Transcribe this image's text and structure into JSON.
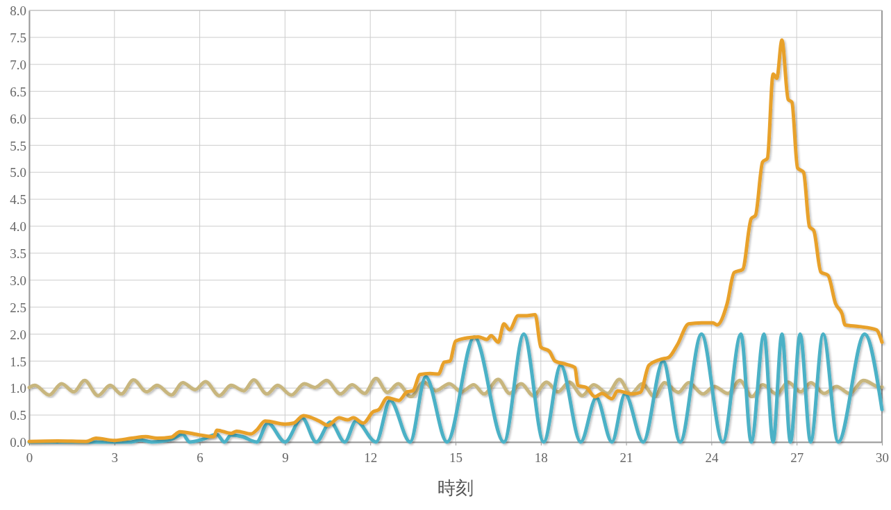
{
  "chart_data": {
    "type": "line",
    "xlabel": "時刻",
    "xlim": [
      0,
      30
    ],
    "xticks": [
      0,
      3,
      6,
      9,
      12,
      15,
      18,
      21,
      24,
      27,
      30
    ],
    "ylim": [
      0,
      8
    ],
    "yticks": [
      {
        "value": 0,
        "label": "0.0"
      },
      {
        "value": 0.5,
        "label": "0.5"
      },
      {
        "value": 1,
        "label": "1.0"
      },
      {
        "value": 1.5,
        "label": "1.5"
      },
      {
        "value": 2,
        "label": "2.0"
      },
      {
        "value": 2.5,
        "label": "2.5"
      },
      {
        "value": 3,
        "label": "3.0"
      },
      {
        "value": 3.5,
        "label": "3.5"
      },
      {
        "value": 4,
        "label": "4.0"
      },
      {
        "value": 4.5,
        "label": "4.5"
      },
      {
        "value": 5,
        "label": "5.0"
      },
      {
        "value": 5.5,
        "label": "5.5"
      },
      {
        "value": 6,
        "label": "6.0"
      },
      {
        "value": 6.5,
        "label": "6.5"
      },
      {
        "value": 7,
        "label": "7.0"
      },
      {
        "value": 7.5,
        "label": "7.5"
      },
      {
        "value": 8,
        "label": "8.0"
      }
    ],
    "grid": true,
    "marker": "none",
    "line_style": "solid",
    "series": [
      {
        "color": "#c8b67e",
        "x": [
          0,
          0.2,
          0.7,
          1.14,
          1.57,
          1.95,
          2.42,
          2.85,
          3.24,
          3.67,
          4.13,
          4.5,
          5.0,
          5.4,
          5.84,
          6.2,
          6.69,
          7.1,
          7.55,
          7.9,
          8.36,
          8.74,
          9.22,
          9.68,
          10.05,
          10.46,
          10.95,
          11.36,
          11.8,
          12.2,
          12.6,
          12.98,
          13.43,
          13.88,
          14.3,
          14.78,
          15.2,
          15.64,
          16.0,
          16.5,
          16.9,
          17.3,
          17.74,
          18.2,
          18.6,
          19.0,
          19.45,
          19.86,
          20.35,
          20.76,
          21.16,
          21.57,
          22.0,
          22.35,
          22.84,
          23.2,
          23.7,
          24.1,
          24.58,
          25.0,
          25.43,
          25.8,
          26.3,
          26.7,
          27.14,
          27.5,
          27.97,
          28.4,
          28.86,
          29.35,
          29.95,
          30
        ],
        "values": [
          1.01,
          1.05,
          0.87,
          1.08,
          0.93,
          1.14,
          0.86,
          1.05,
          0.89,
          1.15,
          0.93,
          1.05,
          0.87,
          1.1,
          0.97,
          1.12,
          0.86,
          1.05,
          0.95,
          1.15,
          0.89,
          1.05,
          0.87,
          1.08,
          1.01,
          1.14,
          0.89,
          1.06,
          0.9,
          1.18,
          0.92,
          1.08,
          0.84,
          1.11,
          0.95,
          1.08,
          0.93,
          1.06,
          0.89,
          1.16,
          0.9,
          1.08,
          0.86,
          1.11,
          0.93,
          1.11,
          0.86,
          1.06,
          0.9,
          1.16,
          0.89,
          1.08,
          0.84,
          1.1,
          0.92,
          1.1,
          0.89,
          1.03,
          0.9,
          1.14,
          0.84,
          1.06,
          0.89,
          1.11,
          0.93,
          1.1,
          0.9,
          1.03,
          0.9,
          1.14,
          1.01,
          1.02
        ]
      },
      {
        "color": "#4bb1c6",
        "x": [
          0,
          3.6,
          3.9,
          4.3,
          5.0,
          5.4,
          5.65,
          6.1,
          6.6,
          6.87,
          7.1,
          7.5,
          8.0,
          8.4,
          9.0,
          9.6,
          10.1,
          10.6,
          11.1,
          11.5,
          12.2,
          12.7,
          13.4,
          13.95,
          14.7,
          15.66,
          16.7,
          17.4,
          18.1,
          18.7,
          19.4,
          19.95,
          20.5,
          20.96,
          21.6,
          22.3,
          22.9,
          23.65,
          24.4,
          25.04,
          25.4,
          25.85,
          26.17,
          26.48,
          26.78,
          27.12,
          27.49,
          27.93,
          28.46,
          29.39,
          30
        ],
        "values": [
          0,
          0,
          0.04,
          0,
          0.05,
          0.14,
          0,
          0.05,
          0.14,
          0,
          0.13,
          0.1,
          0,
          0.35,
          0,
          0.45,
          0,
          0.37,
          0,
          0.39,
          0,
          0.77,
          0,
          1.21,
          0,
          1.95,
          0,
          2.0,
          0,
          1.42,
          0,
          0.82,
          0,
          0.89,
          0,
          1.5,
          0,
          2.0,
          0,
          2.0,
          0,
          2.0,
          0,
          2.0,
          0,
          2.0,
          0,
          2.0,
          0,
          2.0,
          0.6
        ]
      },
      {
        "color": "#e8a12c",
        "x": [
          0,
          1.0,
          2.0,
          2.35,
          3.0,
          3.6,
          4.1,
          4.5,
          5.0,
          5.3,
          6.0,
          6.5,
          6.6,
          7.1,
          7.3,
          7.8,
          8.0,
          8.3,
          9.0,
          9.3,
          9.65,
          10.2,
          10.5,
          10.9,
          11.2,
          11.4,
          11.75,
          12.1,
          12.3,
          12.6,
          13.0,
          13.3,
          13.5,
          13.75,
          14.1,
          14.4,
          14.6,
          14.8,
          15.0,
          15.4,
          15.8,
          16.1,
          16.25,
          16.5,
          16.7,
          16.9,
          17.2,
          17.5,
          17.8,
          18.0,
          18.3,
          18.5,
          18.9,
          19.2,
          19.3,
          19.6,
          19.9,
          20.15,
          20.5,
          20.7,
          21.2,
          21.5,
          21.8,
          22.2,
          22.5,
          22.8,
          23.2,
          23.65,
          24.05,
          24.2,
          24.55,
          24.8,
          25.1,
          25.4,
          25.55,
          25.8,
          25.97,
          26.17,
          26.3,
          26.48,
          26.7,
          26.83,
          27.03,
          27.24,
          27.45,
          27.6,
          27.85,
          28.1,
          28.37,
          28.6,
          28.7,
          29.2,
          29.8,
          30
        ],
        "values": [
          0.01,
          0.02,
          0.01,
          0.07,
          0.03,
          0.07,
          0.1,
          0.07,
          0.09,
          0.19,
          0.13,
          0.1,
          0.22,
          0.16,
          0.2,
          0.15,
          0.22,
          0.39,
          0.33,
          0.35,
          0.49,
          0.39,
          0.31,
          0.45,
          0.41,
          0.45,
          0.35,
          0.56,
          0.6,
          0.82,
          0.77,
          0.93,
          0.95,
          1.25,
          1.27,
          1.26,
          1.48,
          1.5,
          1.87,
          1.93,
          1.95,
          1.9,
          1.97,
          1.85,
          2.19,
          2.08,
          2.34,
          2.34,
          2.36,
          1.76,
          1.68,
          1.5,
          1.44,
          1.38,
          1.05,
          1.01,
          0.84,
          0.9,
          0.8,
          0.95,
          0.89,
          0.92,
          1.42,
          1.53,
          1.57,
          1.8,
          2.19,
          2.21,
          2.21,
          2.17,
          2.56,
          3.14,
          3.2,
          4.14,
          4.2,
          5.19,
          5.26,
          6.82,
          6.74,
          7.45,
          6.35,
          6.3,
          5.08,
          5.0,
          3.99,
          3.92,
          3.15,
          3.09,
          2.56,
          2.37,
          2.17,
          2.14,
          2.08,
          1.85
        ]
      }
    ]
  }
}
